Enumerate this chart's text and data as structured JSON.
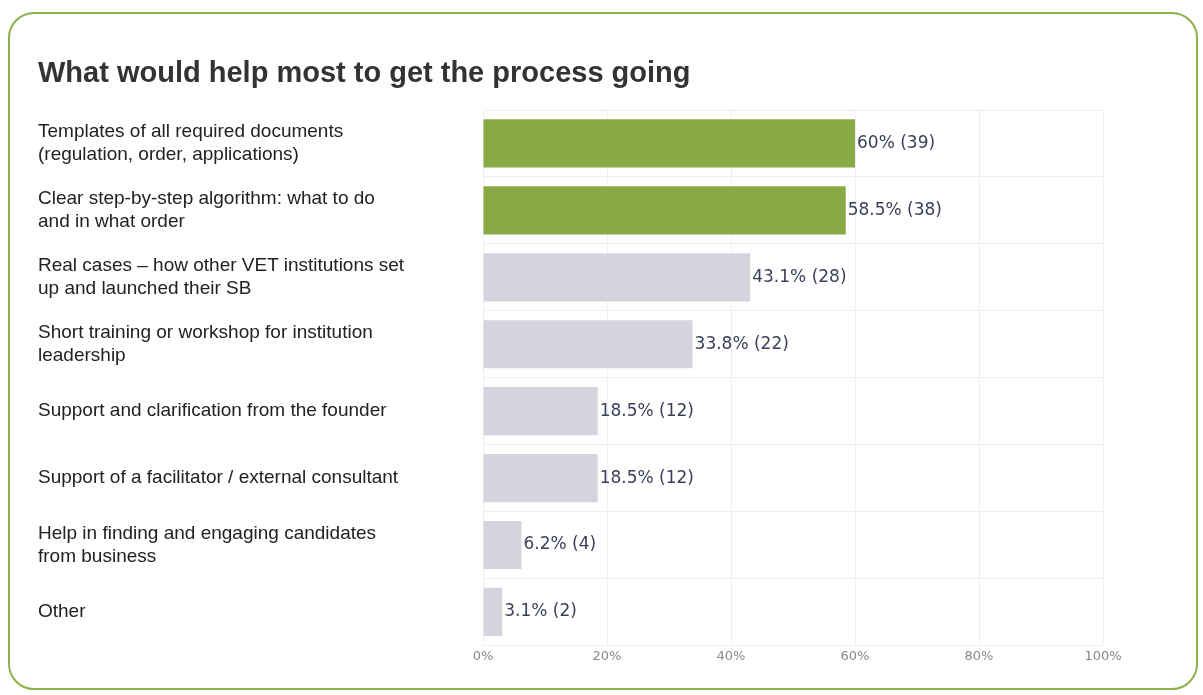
{
  "chart_data": {
    "type": "bar",
    "orientation": "horizontal",
    "title": "What would help most to get the process going",
    "categories": [
      "Templates of all required documents (regulation, order, applications)",
      "Clear step-by-step algorithm: what to do and in what order",
      "Real cases – how other VET institutions set up and launched their SB",
      "Short training or workshop for institution leadership",
      "Support and clarification from the founder",
      "Support of a facilitator / external consultant",
      "Help in finding and engaging candidates from business",
      "Other"
    ],
    "values": [
      60,
      58.5,
      43.1,
      33.8,
      18.5,
      18.5,
      6.2,
      3.1
    ],
    "value_labels": [
      "60% (39)",
      "58.5% (38)",
      "43.1% (28)",
      "33.8% (22)",
      "18.5% (12)",
      "18.5% (12)",
      "6.2% (4)",
      "3.1% (2)"
    ],
    "colors": [
      "#88aa44",
      "#88aa44",
      "#d4d3de",
      "#d4d3de",
      "#d4d3de",
      "#d4d3de",
      "#d4d3de",
      "#d4d3de"
    ],
    "xlim": [
      0,
      100
    ],
    "xticks": [
      {
        "value": 0,
        "label": "0%"
      },
      {
        "value": 20,
        "label": "20%"
      },
      {
        "value": 40,
        "label": "40%"
      },
      {
        "value": 60,
        "label": "60%"
      },
      {
        "value": 80,
        "label": "80%"
      },
      {
        "value": 100,
        "label": "100%"
      }
    ],
    "grid": true,
    "legend": false
  }
}
